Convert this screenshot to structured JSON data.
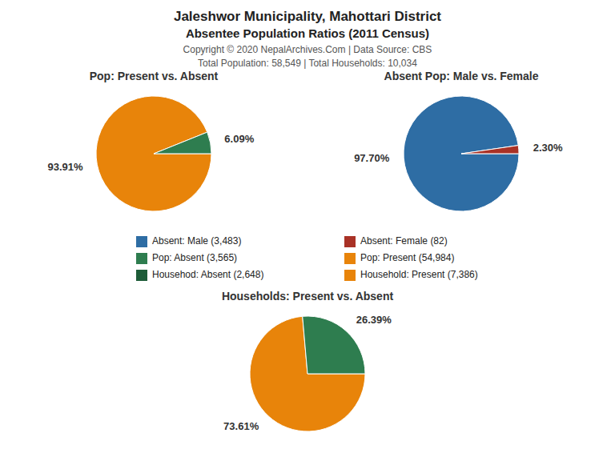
{
  "title": "Jaleshwor Municipality, Mahottari District",
  "subtitle": "Absentee Population Ratios (2011 Census)",
  "annotations": [
    "Copyright © 2020 NepalArchives.Com | Data Source: CBS",
    "Total Population: 58,549 | Total Households: 10,034"
  ],
  "chart_data": [
    {
      "type": "pie",
      "title": "Pop: Present vs. Absent",
      "values": [
        93.91,
        6.09
      ],
      "value_labels": [
        "93.91%",
        "6.09%"
      ],
      "colors": [
        "#e8840a",
        "#2e7d4f"
      ],
      "data_labels": true
    },
    {
      "type": "pie",
      "title": "Absent Pop: Male vs. Female",
      "values": [
        97.7,
        2.3
      ],
      "value_labels": [
        "97.70%",
        "2.30%"
      ],
      "colors": [
        "#2e6da4",
        "#a93226"
      ],
      "data_labels": true
    },
    {
      "type": "pie",
      "title": "Households: Present vs. Absent",
      "values": [
        73.61,
        26.39
      ],
      "value_labels": [
        "73.61%",
        "26.39%"
      ],
      "colors": [
        "#e8840a",
        "#2e7d4f"
      ],
      "data_labels": true
    },
    {
      "type": "legend",
      "series": [
        {
          "name": "Absent: Male (3,483)",
          "color": "#2e6da4"
        },
        {
          "name": "Absent: Female (82)",
          "color": "#a93226"
        },
        {
          "name": "Pop: Absent (3,565)",
          "color": "#2e7d4f"
        },
        {
          "name": "Pop: Present (54,984)",
          "color": "#e8840a"
        },
        {
          "name": "Househod: Absent (2,648)",
          "color": "#1d5c38"
        },
        {
          "name": "Household: Present (7,386)",
          "color": "#e8840a"
        }
      ]
    }
  ]
}
